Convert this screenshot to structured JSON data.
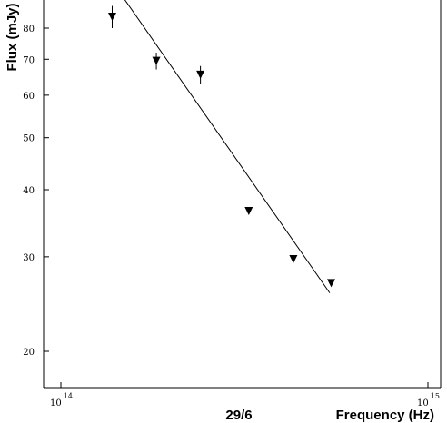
{
  "chart_data": {
    "type": "scatter",
    "title": "",
    "panel_label": "29/6",
    "xlabel": "Frequency (Hz)",
    "ylabel": "Flux (mJy)",
    "xscale": "log",
    "yscale": "log",
    "xlim": [
      85000000000000.0,
      1050000000000000.0
    ],
    "ylim": [
      16.5,
      90
    ],
    "grid": false,
    "legend": "none",
    "x_ticks": [
      {
        "value": 100000000000000.0,
        "base": "10",
        "exp": "14"
      },
      {
        "value": 1000000000000000.0,
        "base": "10",
        "exp": "15"
      }
    ],
    "y_ticks": [
      {
        "value": 20,
        "label": "20"
      },
      {
        "value": 30,
        "label": "30"
      },
      {
        "value": 40,
        "label": "40"
      },
      {
        "value": 50,
        "label": "50"
      },
      {
        "value": 60,
        "label": "60"
      },
      {
        "value": 70,
        "label": "70"
      },
      {
        "value": 80,
        "label": "80"
      }
    ],
    "series": [
      {
        "marker": "down-triangle",
        "points": [
          {
            "x": 138000000000000.0,
            "y": 84,
            "yerr": 4
          },
          {
            "x": 182000000000000.0,
            "y": 69.5,
            "yerr": 2.5
          },
          {
            "x": 240000000000000.0,
            "y": 65.5,
            "yerr": 2.5
          },
          {
            "x": 325000000000000.0,
            "y": 36.5,
            "yerr": 0
          },
          {
            "x": 430000000000000.0,
            "y": 29.7,
            "yerr": 0
          },
          {
            "x": 545000000000000.0,
            "y": 26.8,
            "yerr": 0
          }
        ]
      }
    ],
    "fit_line": {
      "from": {
        "x": 145000000000000.0,
        "y": 93
      },
      "to": {
        "x": 540000000000000.0,
        "y": 25.7
      }
    }
  }
}
